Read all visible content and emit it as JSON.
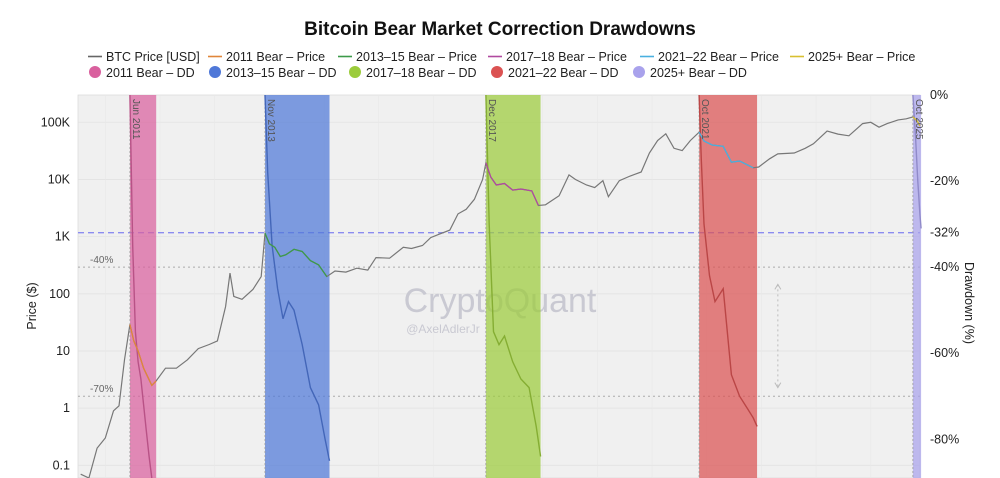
{
  "chart_data": {
    "type": "line",
    "title": "Bitcoin Bear Market Correction Drawdowns",
    "ylabel": "Price ($)",
    "y2label": "Drawdown (%)",
    "yscale": "log",
    "ylim": [
      0.06,
      300000
    ],
    "y2lim": [
      0,
      -89
    ],
    "xlim": [
      2010.5,
      2025.9
    ],
    "yticks": [
      {
        "value": 0.1,
        "label": "0.1"
      },
      {
        "value": 1,
        "label": "1"
      },
      {
        "value": 10,
        "label": "10"
      },
      {
        "value": 100,
        "label": "100"
      },
      {
        "value": 1000,
        "label": "1K"
      },
      {
        "value": 10000,
        "label": "10K"
      },
      {
        "value": 100000,
        "label": "100K"
      }
    ],
    "y2ticks": [
      {
        "value": 0,
        "label": "0%"
      },
      {
        "value": -20,
        "label": "-20%"
      },
      {
        "value": -32,
        "label": "-32%"
      },
      {
        "value": -40,
        "label": "-40%"
      },
      {
        "value": -60,
        "label": "-60%"
      },
      {
        "value": -80,
        "label": "-80%"
      }
    ],
    "reference_lines": [
      {
        "drawdown": -32,
        "style": "dashed",
        "color": "#8b8cf0"
      },
      {
        "drawdown": -40,
        "style": "dotted",
        "color": "#aaaaaa",
        "label": "-40%"
      },
      {
        "drawdown": -70,
        "style": "dotted",
        "color": "#aaaaaa",
        "label": "-70%"
      }
    ],
    "periods": [
      {
        "name": "2011 Bear",
        "label": "Jun 2011",
        "start": 2011.45,
        "end": 2011.93,
        "color": "#d9609e",
        "price_color": "#e0863a",
        "min_dd": -93
      },
      {
        "name": "2013–15 Bear",
        "label": "Nov 2013",
        "start": 2013.92,
        "end": 2015.1,
        "color": "#4f78d8",
        "price_color": "#3d9a4a",
        "min_dd": -85
      },
      {
        "name": "2017–18 Bear",
        "label": "Dec 2017",
        "start": 2017.96,
        "end": 2018.96,
        "color": "#9ccc3c",
        "price_color": "#b04aa0",
        "min_dd": -84
      },
      {
        "name": "2021–22 Bear",
        "label": "Oct 2021",
        "start": 2021.86,
        "end": 2022.92,
        "color": "#db5252",
        "price_color": "#4ab0e0",
        "min_dd": -77
      },
      {
        "name": "2025+ Bear",
        "label": "Oct 2025",
        "start": 2025.77,
        "end": 2025.92,
        "color": "#a9a2ec",
        "price_color": "#d8c030",
        "min_dd": -31
      }
    ],
    "legend": [
      {
        "label": "BTC Price [USD]",
        "kind": "line",
        "color": "#666666"
      },
      {
        "label": "2011 Bear – Price",
        "kind": "line",
        "color": "#e0863a"
      },
      {
        "label": "2013–15 Bear – Price",
        "kind": "line",
        "color": "#3d9a4a"
      },
      {
        "label": "2017–18 Bear – Price",
        "kind": "line",
        "color": "#b04aa0"
      },
      {
        "label": "2021–22 Bear – Price",
        "kind": "line",
        "color": "#4ab0e0"
      },
      {
        "label": "2025+ Bear – Price",
        "kind": "line",
        "color": "#d8c030"
      },
      {
        "label": "2011 Bear – DD",
        "kind": "dot",
        "color": "#d9609e"
      },
      {
        "label": "2013–15 Bear – DD",
        "kind": "dot",
        "color": "#4f78d8"
      },
      {
        "label": "2017–18 Bear – DD",
        "kind": "dot",
        "color": "#9ccc3c"
      },
      {
        "label": "2021–22 Bear – DD",
        "kind": "dot",
        "color": "#db5252"
      },
      {
        "label": "2025+ Bear – DD",
        "kind": "dot",
        "color": "#a9a2ec"
      }
    ],
    "series": [
      {
        "name": "BTC Price [USD]",
        "color": "#777777",
        "points": [
          [
            2010.55,
            0.07
          ],
          [
            2010.7,
            0.06
          ],
          [
            2010.85,
            0.2
          ],
          [
            2011.0,
            0.3
          ],
          [
            2011.15,
            0.9
          ],
          [
            2011.25,
            1.1
          ],
          [
            2011.35,
            7
          ],
          [
            2011.45,
            29
          ],
          [
            2011.52,
            15
          ],
          [
            2011.6,
            10
          ],
          [
            2011.7,
            5
          ],
          [
            2011.85,
            2.5
          ],
          [
            2011.93,
            3
          ],
          [
            2012.1,
            5
          ],
          [
            2012.3,
            5
          ],
          [
            2012.5,
            7
          ],
          [
            2012.7,
            11
          ],
          [
            2012.9,
            13
          ],
          [
            2013.05,
            15
          ],
          [
            2013.2,
            60
          ],
          [
            2013.28,
            230
          ],
          [
            2013.35,
            90
          ],
          [
            2013.5,
            80
          ],
          [
            2013.7,
            120
          ],
          [
            2013.85,
            200
          ],
          [
            2013.92,
            1150
          ],
          [
            2014.0,
            750
          ],
          [
            2014.1,
            650
          ],
          [
            2014.2,
            450
          ],
          [
            2014.3,
            480
          ],
          [
            2014.45,
            600
          ],
          [
            2014.6,
            550
          ],
          [
            2014.75,
            380
          ],
          [
            2014.9,
            320
          ],
          [
            2015.05,
            200
          ],
          [
            2015.2,
            250
          ],
          [
            2015.4,
            240
          ],
          [
            2015.6,
            280
          ],
          [
            2015.8,
            260
          ],
          [
            2015.95,
            430
          ],
          [
            2016.2,
            420
          ],
          [
            2016.45,
            650
          ],
          [
            2016.6,
            620
          ],
          [
            2016.8,
            700
          ],
          [
            2016.95,
            960
          ],
          [
            2017.1,
            1100
          ],
          [
            2017.3,
            1300
          ],
          [
            2017.45,
            2500
          ],
          [
            2017.6,
            3000
          ],
          [
            2017.75,
            4500
          ],
          [
            2017.9,
            10000
          ],
          [
            2017.96,
            19500
          ],
          [
            2018.05,
            11000
          ],
          [
            2018.15,
            8000
          ],
          [
            2018.3,
            8500
          ],
          [
            2018.45,
            6500
          ],
          [
            2018.6,
            6800
          ],
          [
            2018.8,
            6300
          ],
          [
            2018.92,
            3500
          ],
          [
            2019.05,
            3600
          ],
          [
            2019.3,
            5200
          ],
          [
            2019.48,
            12000
          ],
          [
            2019.6,
            10000
          ],
          [
            2019.8,
            8000
          ],
          [
            2019.95,
            7200
          ],
          [
            2020.1,
            9500
          ],
          [
            2020.2,
            5000
          ],
          [
            2020.4,
            9500
          ],
          [
            2020.6,
            11500
          ],
          [
            2020.8,
            13500
          ],
          [
            2020.95,
            29000
          ],
          [
            2021.1,
            48000
          ],
          [
            2021.25,
            63000
          ],
          [
            2021.4,
            35000
          ],
          [
            2021.55,
            32000
          ],
          [
            2021.7,
            48000
          ],
          [
            2021.86,
            67000
          ],
          [
            2021.95,
            47000
          ],
          [
            2022.1,
            40000
          ],
          [
            2022.3,
            38000
          ],
          [
            2022.45,
            20000
          ],
          [
            2022.6,
            21000
          ],
          [
            2022.85,
            16000
          ],
          [
            2022.95,
            16500
          ],
          [
            2023.15,
            23000
          ],
          [
            2023.3,
            28000
          ],
          [
            2023.6,
            29000
          ],
          [
            2023.8,
            35000
          ],
          [
            2023.95,
            42000
          ],
          [
            2024.2,
            70000
          ],
          [
            2024.4,
            62000
          ],
          [
            2024.6,
            58000
          ],
          [
            2024.85,
            95000
          ],
          [
            2025.0,
            100000
          ],
          [
            2025.15,
            82000
          ],
          [
            2025.3,
            95000
          ],
          [
            2025.5,
            110000
          ],
          [
            2025.65,
            115000
          ],
          [
            2025.77,
            124000
          ],
          [
            2025.85,
            105000
          ],
          [
            2025.9,
            86000
          ]
        ]
      }
    ],
    "drawdown_series": [
      {
        "name": "2011 Bear – DD",
        "points": [
          [
            2011.45,
            0
          ],
          [
            2011.5,
            -35
          ],
          [
            2011.55,
            -55
          ],
          [
            2011.6,
            -62
          ],
          [
            2011.65,
            -66
          ],
          [
            2011.7,
            -72
          ],
          [
            2011.75,
            -78
          ],
          [
            2011.8,
            -84
          ],
          [
            2011.85,
            -89
          ],
          [
            2011.93,
            -93
          ]
        ]
      },
      {
        "name": "2013–15 Bear – DD",
        "points": [
          [
            2013.92,
            0
          ],
          [
            2013.97,
            -18
          ],
          [
            2014.05,
            -35
          ],
          [
            2014.15,
            -45
          ],
          [
            2014.25,
            -52
          ],
          [
            2014.35,
            -48
          ],
          [
            2014.45,
            -50
          ],
          [
            2014.6,
            -58
          ],
          [
            2014.75,
            -68
          ],
          [
            2014.9,
            -72
          ],
          [
            2015.02,
            -80
          ],
          [
            2015.1,
            -85
          ]
        ]
      },
      {
        "name": "2017–18 Bear – DD",
        "points": [
          [
            2017.96,
            0
          ],
          [
            2018.02,
            -30
          ],
          [
            2018.1,
            -55
          ],
          [
            2018.2,
            -58
          ],
          [
            2018.3,
            -56
          ],
          [
            2018.45,
            -62
          ],
          [
            2018.6,
            -66
          ],
          [
            2018.75,
            -68
          ],
          [
            2018.88,
            -77
          ],
          [
            2018.96,
            -84
          ]
        ]
      },
      {
        "name": "2021–22 Bear – DD",
        "points": [
          [
            2021.86,
            0
          ],
          [
            2021.9,
            -15
          ],
          [
            2021.95,
            -30
          ],
          [
            2022.05,
            -42
          ],
          [
            2022.15,
            -48
          ],
          [
            2022.3,
            -45
          ],
          [
            2022.45,
            -65
          ],
          [
            2022.6,
            -70
          ],
          [
            2022.75,
            -73
          ],
          [
            2022.85,
            -75
          ],
          [
            2022.92,
            -77
          ]
        ]
      },
      {
        "name": "2025+ Bear – DD",
        "points": [
          [
            2025.77,
            0
          ],
          [
            2025.82,
            -10
          ],
          [
            2025.86,
            -20
          ],
          [
            2025.9,
            -28
          ],
          [
            2025.92,
            -31
          ]
        ]
      }
    ],
    "annotations": [
      {
        "type": "arrow",
        "x": 2023.3,
        "from_dd": -44,
        "to_dd": -68,
        "style": "dotted"
      }
    ],
    "watermark": {
      "brand": "CryptoQuant",
      "handle": "@AxelAdlerJr"
    }
  }
}
